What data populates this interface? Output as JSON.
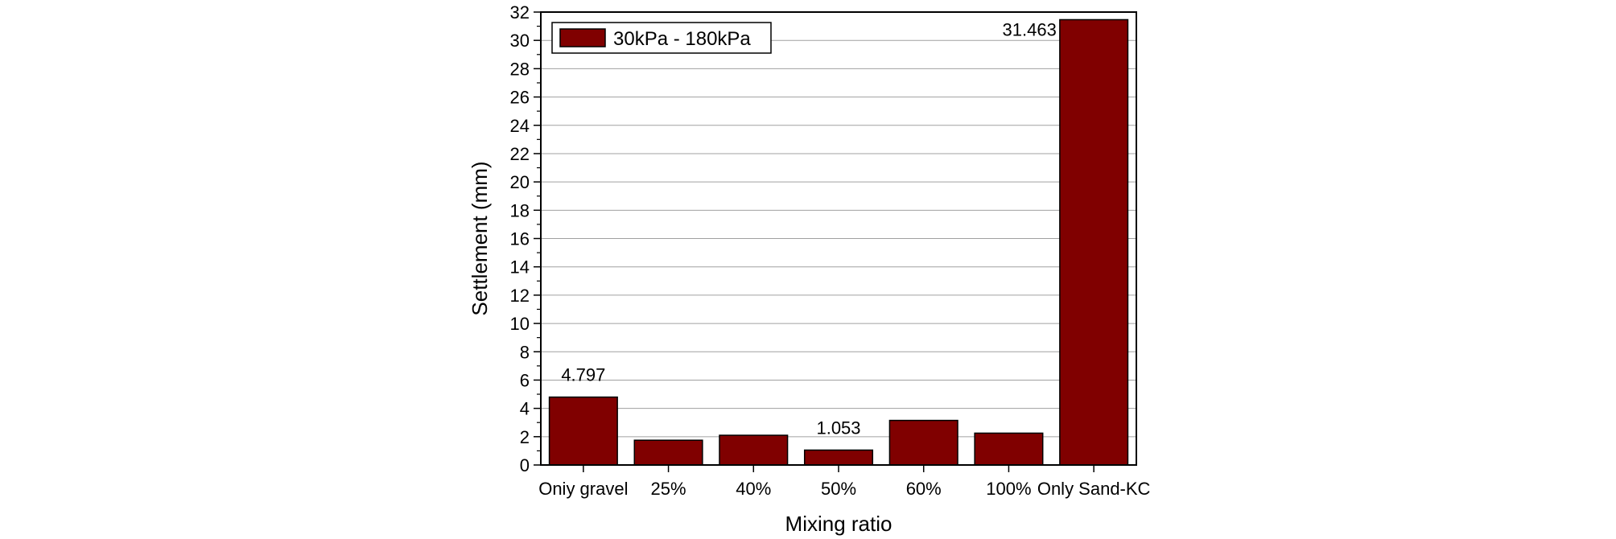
{
  "chart_data": {
    "type": "bar",
    "title": "",
    "xlabel": "Mixing ratio",
    "ylabel": "Settlement (mm)",
    "ylim": [
      0,
      32
    ],
    "y_major_step": 2,
    "grid": true,
    "legend_position": "top-left",
    "categories": [
      "Oniy gravel",
      "25%",
      "40%",
      "50%",
      "60%",
      "100%",
      "Only Sand-KC"
    ],
    "series": [
      {
        "name": "30kPa - 180kPa",
        "values": [
          4.797,
          1.75,
          2.1,
          1.053,
          3.15,
          2.25,
          31.463
        ],
        "color": "#800000"
      }
    ],
    "data_labels": [
      {
        "index": 0,
        "text": "4.797"
      },
      {
        "index": 3,
        "text": "1.053"
      },
      {
        "index": 6,
        "text": "31.463"
      }
    ]
  }
}
